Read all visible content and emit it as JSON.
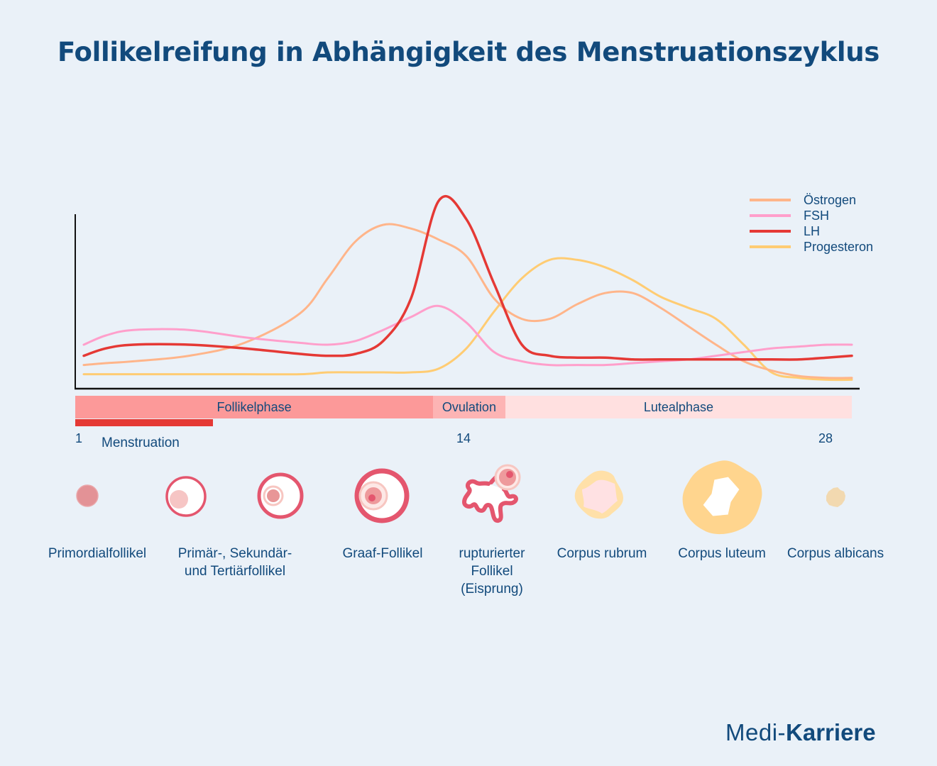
{
  "title": "Follikelreifung in Abhängigkeit des Menstruationszyklus",
  "chart_data": {
    "type": "line",
    "title": "Follikelreifung in Abhängigkeit des Menstruationszyklus",
    "xlabel": "",
    "ylabel": "",
    "xlim": [
      1,
      28
    ],
    "ylim": [
      0,
      100
    ],
    "grid": false,
    "legend_position": "top-right",
    "x_ticks": [
      "1",
      "14",
      "28"
    ],
    "x": [
      1,
      2,
      3,
      5,
      7,
      9,
      10,
      11,
      12,
      13,
      14,
      15,
      16,
      17,
      18,
      19,
      20,
      21,
      22,
      23,
      24,
      25,
      26,
      27,
      28,
      29
    ],
    "series": [
      {
        "name": "Östrogen",
        "color": "#ffb58a",
        "values": [
          9,
          10,
          11,
          14,
          21,
          37,
          56,
          76,
          85,
          83,
          77,
          68,
          45,
          34,
          34,
          42,
          48,
          48,
          40,
          30,
          20,
          11,
          6,
          3,
          2,
          2
        ]
      },
      {
        "name": "FSH",
        "color": "#ff9fcb",
        "values": [
          20,
          25,
          28,
          28,
          24,
          21,
          20,
          22,
          28,
          35,
          41,
          32,
          16,
          11,
          9,
          9,
          9,
          10,
          11,
          12,
          14,
          16,
          18,
          19,
          20,
          20
        ]
      },
      {
        "name": "LH",
        "color": "#e53935",
        "values": [
          14,
          18,
          20,
          20,
          18,
          15,
          14,
          15,
          22,
          45,
          98,
          88,
          53,
          20,
          14,
          13,
          13,
          12,
          12,
          12,
          12,
          12,
          12,
          12,
          13,
          14
        ]
      },
      {
        "name": "Progesteron",
        "color": "#ffcc73",
        "values": [
          4,
          4,
          4,
          4,
          4,
          4,
          5,
          5,
          5,
          5,
          7,
          18,
          38,
          56,
          66,
          66,
          62,
          55,
          46,
          40,
          34,
          20,
          5,
          2,
          1,
          1
        ]
      }
    ],
    "phases": [
      {
        "label": "Follikelphase",
        "from_day": 1,
        "to_day": 13.8,
        "color": "#fc9999"
      },
      {
        "label": "Ovulation",
        "from_day": 13.8,
        "to_day": 16.4,
        "color": "#fdb4b4"
      },
      {
        "label": "Lutealphase",
        "from_day": 16.4,
        "to_day": 28.9,
        "color": "#ffe0e0"
      }
    ],
    "menstruation": {
      "label": "Menstruation",
      "from_day": 1,
      "to_day": 5,
      "color": "#e53935"
    }
  },
  "stages": [
    {
      "label_lines": [
        "Primordialfollikel"
      ]
    },
    {
      "label_lines": [
        "Primär-, Sekundär-",
        "und Tertiärfollikel"
      ]
    },
    {
      "label_lines": [
        "Graaf-Follikel"
      ]
    },
    {
      "label_lines": [
        "rupturierter",
        "Follikel",
        "(Eisprung)"
      ]
    },
    {
      "label_lines": [
        "Corpus rubrum"
      ]
    },
    {
      "label_lines": [
        "Corpus luteum"
      ]
    },
    {
      "label_lines": [
        "Corpus albicans"
      ]
    }
  ],
  "brand": {
    "light": "Medi",
    "dash": "-",
    "bold": "Karriere"
  },
  "colors": {
    "text": "#124a7c",
    "background": "#eaf1f8",
    "follicle_red": "#e8566c",
    "luteum_yellow": "#ffd78f"
  }
}
